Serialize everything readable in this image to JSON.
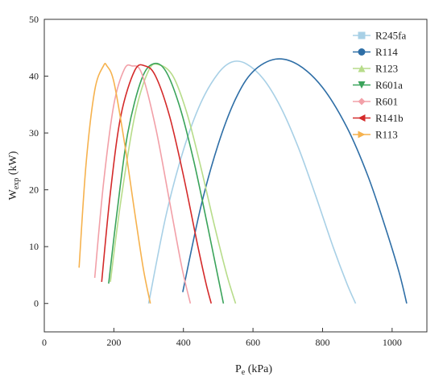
{
  "chart_data": {
    "type": "line",
    "xlabel": {
      "main": "P",
      "sub": "e",
      "rest": " (kPa)"
    },
    "ylabel": {
      "main": "W",
      "sub": "exp",
      "rest": " (kW)"
    },
    "xlim": [
      0,
      1100
    ],
    "ylim": [
      -5,
      50
    ],
    "xticks": [
      0,
      200,
      400,
      600,
      800,
      1000
    ],
    "yticks": [
      0,
      10,
      20,
      30,
      40,
      50
    ],
    "grid": false,
    "legend_position": "top-right",
    "series": [
      {
        "name": "R245fa",
        "color": "#a8d0e6",
        "marker": "square",
        "x": [
          300,
          350,
          400,
          450,
          500,
          540,
          580,
          630,
          680,
          730,
          780,
          830,
          870,
          895
        ],
        "y": [
          0,
          15.5,
          27.0,
          35.3,
          40.5,
          42.5,
          42.2,
          39.5,
          34.5,
          27.5,
          19.0,
          10.0,
          3.5,
          0
        ]
      },
      {
        "name": "R114",
        "color": "#2e6ea6",
        "marker": "circle",
        "x": [
          398,
          450,
          500,
          550,
          600,
          665,
          730,
          800,
          870,
          930,
          980,
          1020,
          1042
        ],
        "y": [
          2.0,
          17.0,
          28.0,
          36.0,
          40.8,
          43.0,
          42.0,
          38.0,
          31.0,
          22.5,
          13.5,
          5.5,
          0
        ]
      },
      {
        "name": "R123",
        "color": "#b7dc8a",
        "marker": "triangle-up",
        "x": [
          190,
          220,
          260,
          300,
          330,
          370,
          410,
          450,
          490,
          525,
          550
        ],
        "y": [
          3.8,
          18.0,
          33.0,
          41.0,
          42.0,
          40.0,
          33.5,
          24.0,
          13.5,
          5.0,
          0
        ]
      },
      {
        "name": "R601a",
        "color": "#3aa35a",
        "marker": "triangle-down",
        "x": [
          185,
          210,
          240,
          280,
          315,
          350,
          390,
          430,
          470,
          500,
          515
        ],
        "y": [
          3.5,
          16.5,
          30.0,
          39.5,
          42.2,
          40.8,
          34.5,
          25.0,
          13.5,
          4.5,
          0
        ]
      },
      {
        "name": "R601",
        "color": "#f2a0a8",
        "marker": "diamond",
        "x": [
          145,
          170,
          200,
          230,
          252,
          280,
          320,
          360,
          395,
          420
        ],
        "y": [
          4.5,
          21.0,
          35.0,
          41.2,
          41.8,
          40.5,
          31.0,
          18.0,
          6.5,
          0
        ]
      },
      {
        "name": "R141b",
        "color": "#d42a2a",
        "marker": "triangle-left",
        "x": [
          165,
          190,
          220,
          260,
          290,
          320,
          360,
          400,
          440,
          465,
          480
        ],
        "y": [
          3.8,
          19.5,
          33.0,
          41.0,
          41.8,
          40.0,
          33.0,
          22.5,
          10.5,
          3.5,
          0
        ]
      },
      {
        "name": "R113",
        "color": "#f6b24e",
        "marker": "triangle-right",
        "x": [
          100,
          120,
          145,
          170,
          180,
          200,
          230,
          260,
          285,
          305
        ],
        "y": [
          6.3,
          24.5,
          37.5,
          41.8,
          41.8,
          39.0,
          28.5,
          16.0,
          6.0,
          0
        ]
      }
    ]
  }
}
